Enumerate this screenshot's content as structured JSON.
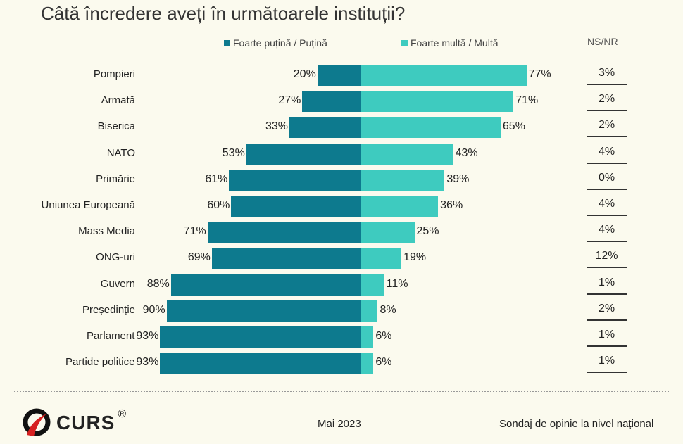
{
  "chart_data": {
    "type": "bar",
    "title": "Câtă încredere aveți în următoarele instituții?",
    "categories": [
      "Pompieri",
      "Armată",
      "Biserica",
      "NATO",
      "Primărie",
      "Uniunea Europeană",
      "Mass Media",
      "ONG-uri",
      "Guvern",
      "Președinție",
      "Parlament",
      "Partide politice"
    ],
    "series": [
      {
        "name": "Foarte puțină / Puțină",
        "color": "#0d7a8e",
        "values": [
          20,
          27,
          33,
          53,
          61,
          60,
          71,
          69,
          88,
          90,
          93,
          93
        ]
      },
      {
        "name": "Foarte multă / Multă",
        "color": "#3ecbbf",
        "values": [
          77,
          71,
          65,
          43,
          39,
          36,
          25,
          19,
          11,
          8,
          6,
          6
        ]
      },
      {
        "name": "NS/NR",
        "values": [
          3,
          2,
          2,
          4,
          0,
          4,
          4,
          12,
          1,
          2,
          1,
          1
        ]
      }
    ],
    "legend": "top"
  },
  "footer": {
    "logo": "CURS",
    "date": "Mai 2023",
    "note": "Sondaj de opinie la nivel național"
  }
}
